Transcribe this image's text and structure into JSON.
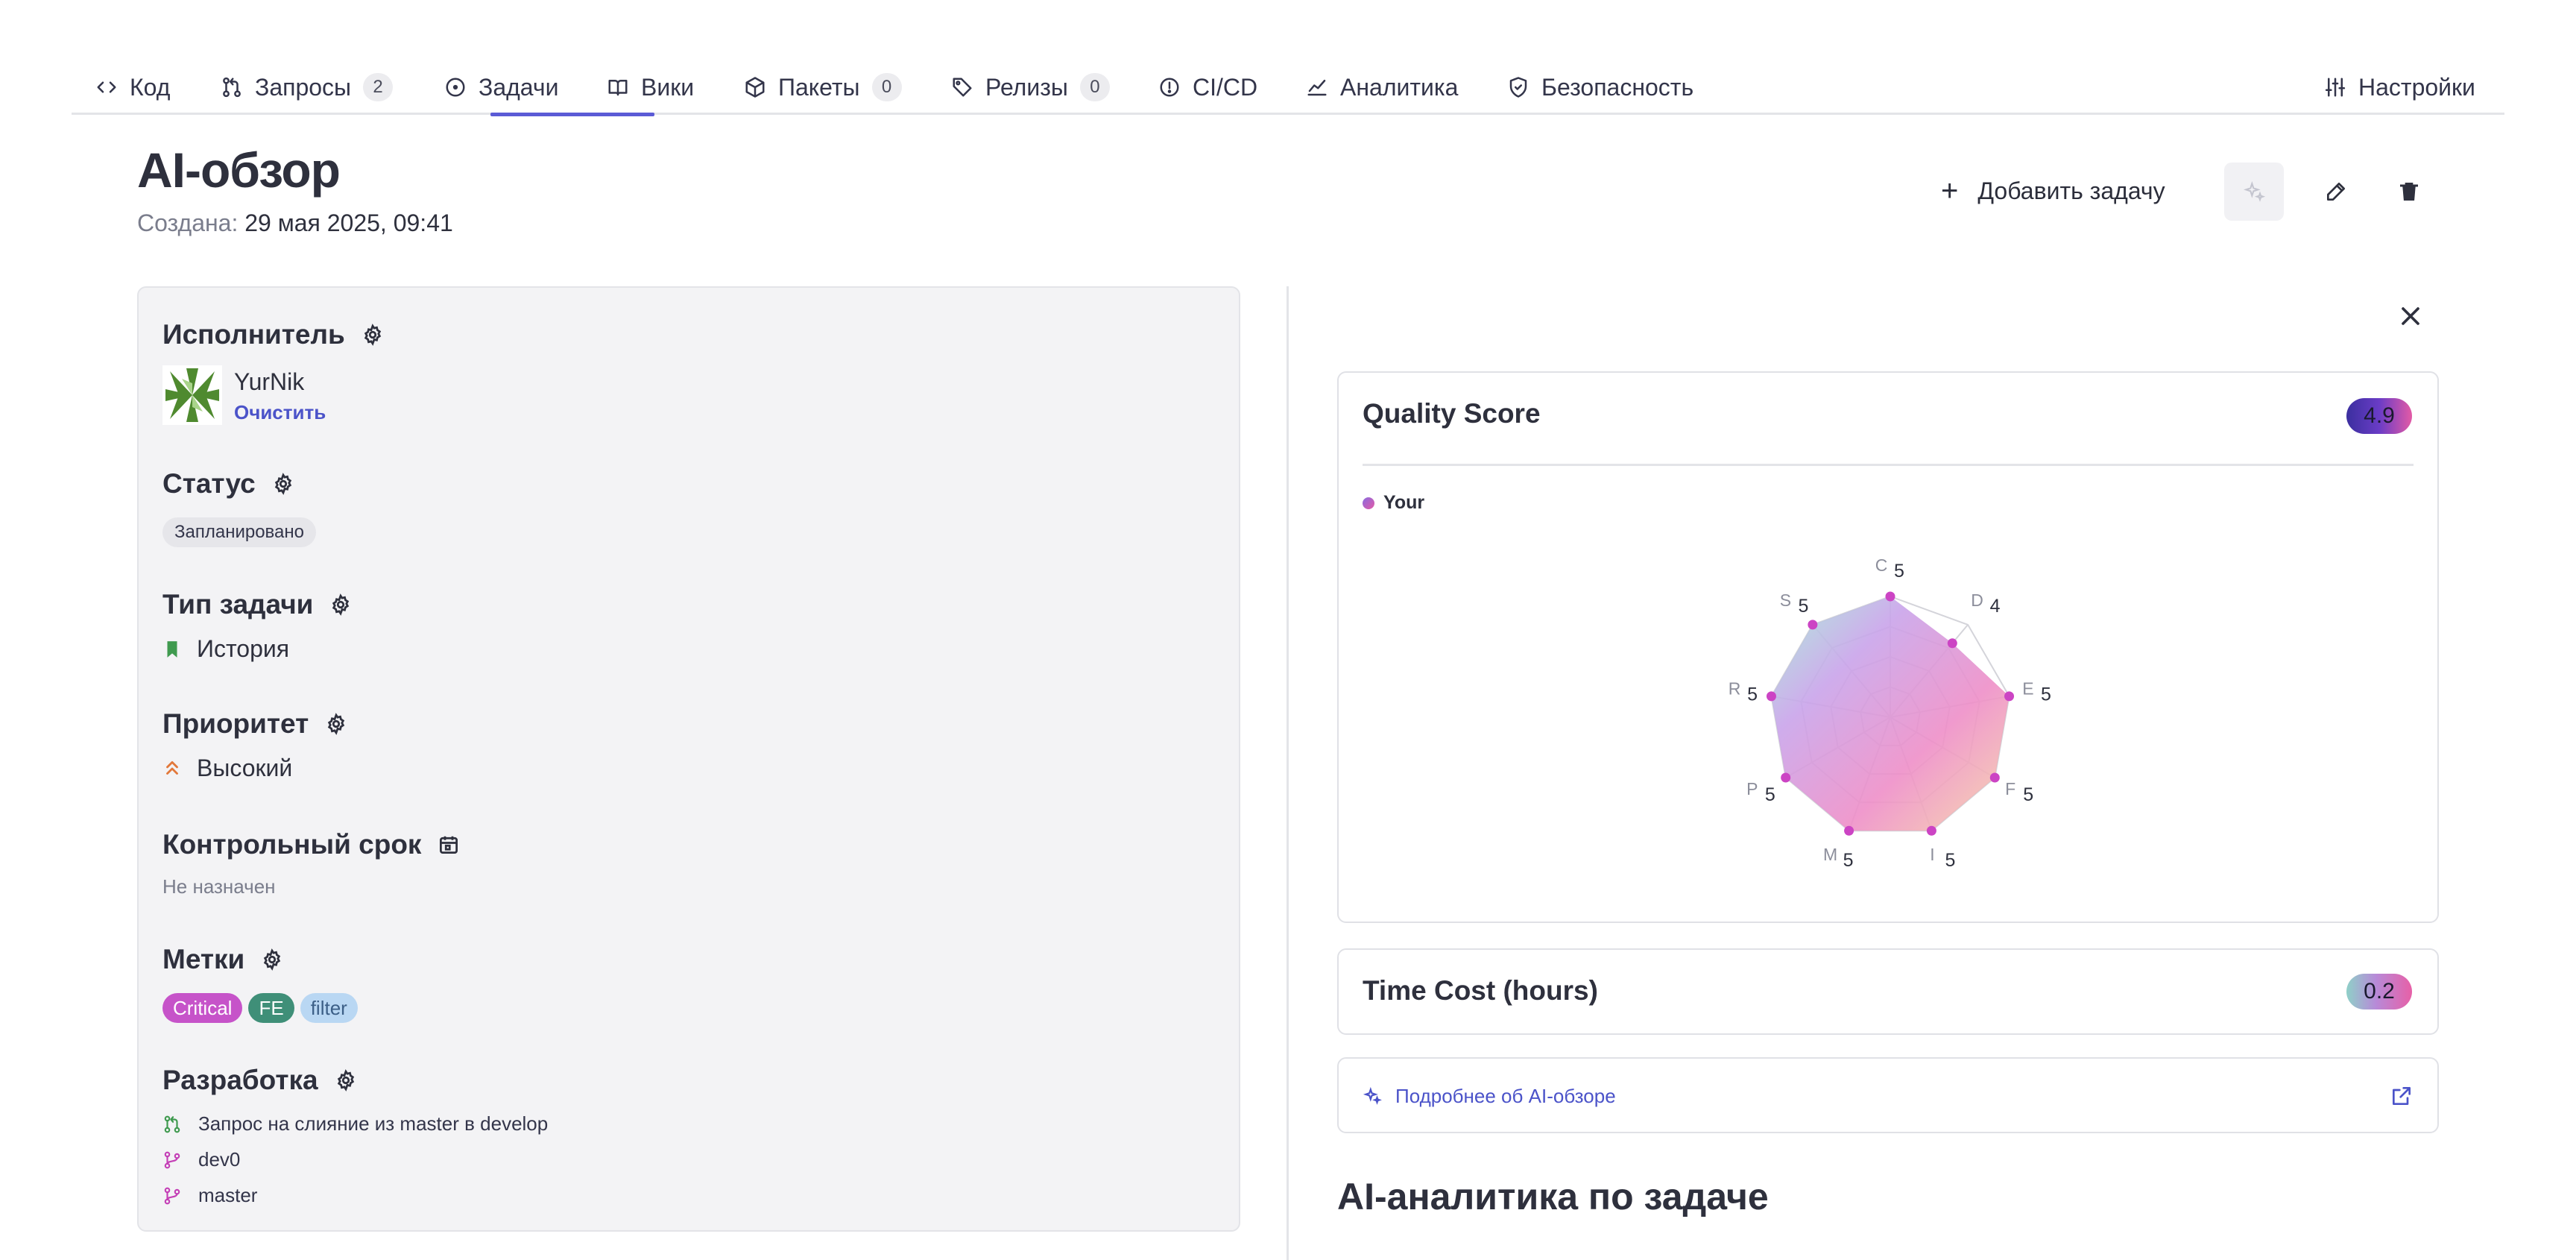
{
  "nav": {
    "tabs": [
      {
        "label": "Код",
        "count": ""
      },
      {
        "label": "Запросы",
        "count": "2"
      },
      {
        "label": "Задачи",
        "count": ""
      },
      {
        "label": "Вики",
        "count": ""
      },
      {
        "label": "Пакеты",
        "count": "0"
      },
      {
        "label": "Релизы",
        "count": "0"
      },
      {
        "label": "CI/CD",
        "count": ""
      },
      {
        "label": "Аналитика",
        "count": ""
      },
      {
        "label": "Безопасность",
        "count": ""
      }
    ],
    "settings_label": "Настройки",
    "active_tab": "Задачи"
  },
  "header": {
    "title": "AI-обзор",
    "created_label": "Создана:",
    "created_value": "29 мая 2025, 09:41",
    "add_task_label": "Добавить задачу"
  },
  "details": {
    "assignee": {
      "title": "Исполнитель",
      "name": "YurNik",
      "clear_label": "Очистить"
    },
    "status": {
      "title": "Статус",
      "value": "Запланировано"
    },
    "type": {
      "title": "Тип задачи",
      "value": "История"
    },
    "priority": {
      "title": "Приоритет",
      "value": "Высокий"
    },
    "deadline": {
      "title": "Контрольный срок",
      "value": "Не назначен"
    },
    "labels": {
      "title": "Метки",
      "items": [
        {
          "text": "Critical",
          "bg": "#c653c9",
          "fg": "#ffffff"
        },
        {
          "text": "FE",
          "bg": "#3f8f78",
          "fg": "#ffffff"
        },
        {
          "text": "filter",
          "bg": "#b9d7f3",
          "fg": "#3c5f87"
        }
      ]
    },
    "development": {
      "title": "Разработка",
      "merge_request": "Запрос на слияние из master в develop",
      "branches": [
        "dev0",
        "master"
      ]
    }
  },
  "quality": {
    "title": "Quality Score",
    "score": "4.9",
    "legend": "Your",
    "axes": [
      {
        "key": "C",
        "value": 5
      },
      {
        "key": "D",
        "value": 4
      },
      {
        "key": "E",
        "value": 5
      },
      {
        "key": "F",
        "value": 5
      },
      {
        "key": "I",
        "value": 5
      },
      {
        "key": "M",
        "value": 5
      },
      {
        "key": "P",
        "value": 5
      },
      {
        "key": "R",
        "value": 5
      },
      {
        "key": "S",
        "value": 5
      }
    ],
    "max": 5
  },
  "time_cost": {
    "title": "Time Cost (hours)",
    "value": "0.2"
  },
  "more_link": "Подробнее об AI-обзоре",
  "analytics_title": "AI-аналитика по задаче",
  "colors": {
    "accent": "#5b5bd6",
    "link": "#4b53c9"
  }
}
